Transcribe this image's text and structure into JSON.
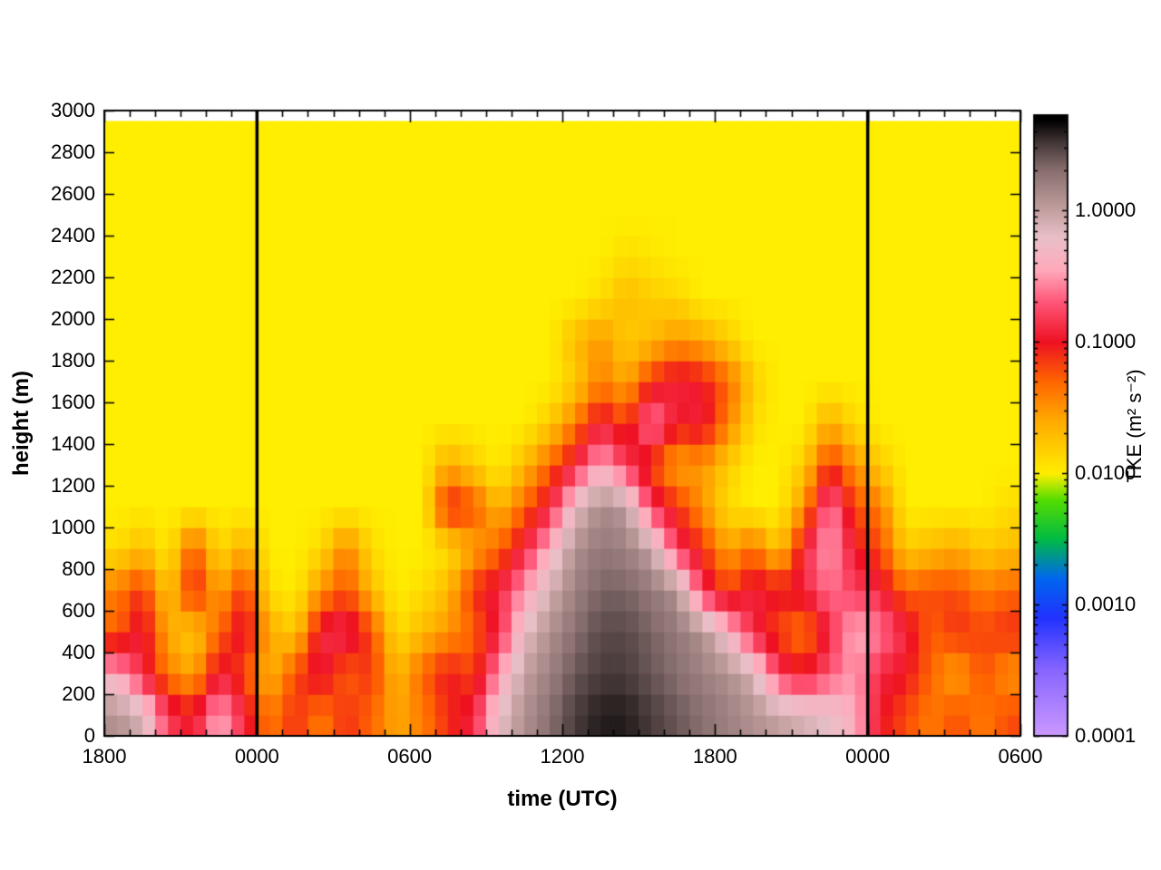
{
  "chart_data": {
    "type": "heatmap",
    "xlabel": "time (UTC)",
    "ylabel": "height (m)",
    "x_range_hours": [
      0,
      36
    ],
    "y_range_m": [
      0,
      3000
    ],
    "heatmap_top_m": 2950,
    "x_ticks": [
      {
        "hour": 0,
        "label": "1800"
      },
      {
        "hour": 6,
        "label": "0000"
      },
      {
        "hour": 12,
        "label": "0600"
      },
      {
        "hour": 18,
        "label": "1200"
      },
      {
        "hour": 24,
        "label": "1800"
      },
      {
        "hour": 30,
        "label": "0000"
      },
      {
        "hour": 36,
        "label": "0600"
      }
    ],
    "y_ticks": [
      {
        "m": 0,
        "label": "0"
      },
      {
        "m": 200,
        "label": "200"
      },
      {
        "m": 400,
        "label": "400"
      },
      {
        "m": 600,
        "label": "600"
      },
      {
        "m": 800,
        "label": "800"
      },
      {
        "m": 1000,
        "label": "1000"
      },
      {
        "m": 1200,
        "label": "1200"
      },
      {
        "m": 1400,
        "label": "1400"
      },
      {
        "m": 1600,
        "label": "1600"
      },
      {
        "m": 1800,
        "label": "1800"
      },
      {
        "m": 2000,
        "label": "2000"
      },
      {
        "m": 2200,
        "label": "2200"
      },
      {
        "m": 2400,
        "label": "2400"
      },
      {
        "m": 2600,
        "label": "2600"
      },
      {
        "m": 2800,
        "label": "2800"
      },
      {
        "m": 3000,
        "label": "3000"
      }
    ],
    "vertical_lines_hours": [
      6,
      30
    ],
    "vertical_line_color": "#000000",
    "colorbar": {
      "scale": "log",
      "label": "TKE (m² s⁻²)",
      "range_log10": [
        -4,
        0.725
      ],
      "ticks": [
        {
          "log10": -4,
          "label": "0.0001"
        },
        {
          "log10": -3,
          "label": "0.0010"
        },
        {
          "log10": -2,
          "label": "0.0100"
        },
        {
          "log10": -1,
          "label": "0.1000"
        },
        {
          "log10": 0,
          "label": "1.0000"
        }
      ]
    },
    "palette_log10_stops": [
      {
        "v": -4.0,
        "color": "#cc99ff"
      },
      {
        "v": -3.5,
        "color": "#8866ff"
      },
      {
        "v": -3.1,
        "color": "#2233ff"
      },
      {
        "v": -2.8,
        "color": "#0066ee"
      },
      {
        "v": -2.5,
        "color": "#00bb44"
      },
      {
        "v": -2.2,
        "color": "#55dd00"
      },
      {
        "v": -2.0,
        "color": "#ffee00"
      },
      {
        "v": -1.6,
        "color": "#ffaa00"
      },
      {
        "v": -1.3,
        "color": "#ff6600"
      },
      {
        "v": -1.0,
        "color": "#ee1122"
      },
      {
        "v": -0.7,
        "color": "#ff5577"
      },
      {
        "v": -0.45,
        "color": "#ffaabb"
      },
      {
        "v": -0.2,
        "color": "#e8c0c8"
      },
      {
        "v": 0.0,
        "color": "#c4a0a0"
      },
      {
        "v": 0.3,
        "color": "#8a7070"
      },
      {
        "v": 0.5,
        "color": "#4a3c3c"
      },
      {
        "v": 0.69,
        "color": "#000000"
      }
    ],
    "grid": {
      "time_step_hours": 1,
      "height_step_m": 200,
      "values_are": "log10 of TKE (m2 s-2), columns hourly from 1800 UTC, rows bottom to top",
      "rows_bottom_to_top": [
        [
          0.1,
          -0.1,
          -0.8,
          -1.0,
          -0.4,
          -0.9,
          -1.4,
          -1.1,
          -1.4,
          -1.1,
          -1.3,
          -1.6,
          -1.4,
          -1.1,
          -0.9,
          -0.2,
          0.1,
          0.3,
          0.5,
          0.6,
          0.6,
          0.5,
          0.4,
          0.3,
          0.2,
          0.1,
          0.0,
          -0.1,
          -0.2,
          -0.4,
          -1.0,
          -1.2,
          -1.4,
          -1.2,
          -1.4,
          -1.2
        ],
        [
          -0.4,
          -0.9,
          -1.4,
          -1.6,
          -0.9,
          -1.2,
          -1.7,
          -1.2,
          -0.9,
          -1.3,
          -1.1,
          -1.7,
          -1.3,
          -1.0,
          -1.2,
          -0.5,
          0.0,
          0.2,
          0.4,
          0.5,
          0.5,
          0.4,
          0.3,
          0.2,
          0.1,
          -0.1,
          -0.8,
          -1.0,
          -0.7,
          -0.5,
          -0.9,
          -1.0,
          -1.3,
          -1.6,
          -1.2,
          -1.5
        ],
        [
          -1.3,
          -0.9,
          -1.6,
          -1.8,
          -1.3,
          -0.9,
          -1.6,
          -1.8,
          -0.9,
          -0.8,
          -1.2,
          -1.9,
          -1.7,
          -1.5,
          -1.3,
          -0.9,
          -0.2,
          0.1,
          0.3,
          0.45,
          0.45,
          0.35,
          0.25,
          0.1,
          -0.3,
          -0.9,
          -1.2,
          -1.4,
          -0.9,
          -0.4,
          -0.6,
          -0.9,
          -1.3,
          -1.1,
          -1.2,
          -1.1
        ],
        [
          -1.4,
          -1.1,
          -1.8,
          -1.0,
          -1.6,
          -1.1,
          -1.9,
          -2.0,
          -1.5,
          -1.2,
          -1.7,
          -2.0,
          -1.9,
          -1.7,
          -1.1,
          -0.9,
          -0.5,
          -0.1,
          0.2,
          0.35,
          0.35,
          0.25,
          0.1,
          -0.8,
          -1.2,
          -0.9,
          -1.0,
          -0.9,
          -0.6,
          -0.8,
          -0.9,
          -1.3,
          -1.2,
          -1.2,
          -1.4,
          -1.3
        ],
        [
          -1.9,
          -1.7,
          -2.0,
          -1.2,
          -1.9,
          -1.6,
          -2.0,
          -2.0,
          -1.9,
          -1.4,
          -1.9,
          -2.0,
          -2.0,
          -1.9,
          -1.6,
          -1.3,
          -0.9,
          -0.4,
          0.1,
          0.25,
          0.2,
          0.0,
          -0.8,
          -1.1,
          -1.6,
          -1.3,
          -1.8,
          -0.9,
          -0.45,
          -1.0,
          -1.2,
          -1.8,
          -1.7,
          -1.6,
          -1.8,
          -1.7
        ],
        [
          -2.0,
          -2.0,
          -2.0,
          -2.0,
          -2.0,
          -2.0,
          -2.0,
          -2.0,
          -2.0,
          -2.0,
          -2.0,
          -2.0,
          -2.0,
          -1.0,
          -1.2,
          -1.7,
          -1.3,
          -0.9,
          -0.2,
          0.15,
          0.05,
          -0.8,
          -1.1,
          -1.5,
          -1.9,
          -2.0,
          -2.0,
          -1.5,
          -0.5,
          -1.2,
          -1.4,
          -2.0,
          -2.0,
          -2.0,
          -2.0,
          -1.9
        ],
        [
          -2.0,
          -2.0,
          -2.0,
          -2.0,
          -2.0,
          -2.0,
          -2.0,
          -2.0,
          -2.0,
          -2.0,
          -2.0,
          -2.0,
          -2.0,
          -1.6,
          -1.8,
          -2.0,
          -1.7,
          -1.3,
          -0.9,
          -0.4,
          -0.8,
          -1.2,
          -1.6,
          -1.5,
          -1.8,
          -2.0,
          -2.0,
          -1.8,
          -1.1,
          -1.5,
          -1.8,
          -2.0,
          -2.0,
          -2.0,
          -2.0,
          -2.0
        ],
        [
          -2.0,
          -2.0,
          -2.0,
          -2.0,
          -2.0,
          -2.0,
          -2.0,
          -2.0,
          -2.0,
          -2.0,
          -2.0,
          -2.0,
          -2.0,
          -2.0,
          -2.0,
          -2.0,
          -2.0,
          -1.8,
          -1.4,
          -0.9,
          -1.2,
          -0.5,
          -1.0,
          -0.9,
          -1.4,
          -1.9,
          -2.0,
          -2.0,
          -1.6,
          -1.9,
          -2.0,
          -2.0,
          -2.0,
          -2.0,
          -2.0,
          -2.0
        ],
        [
          -2.0,
          -2.0,
          -2.0,
          -2.0,
          -2.0,
          -2.0,
          -2.0,
          -2.0,
          -2.0,
          -2.0,
          -2.0,
          -2.0,
          -2.0,
          -2.0,
          -2.0,
          -2.0,
          -2.0,
          -2.0,
          -1.8,
          -1.4,
          -1.6,
          -1.1,
          -0.9,
          -1.0,
          -1.3,
          -1.8,
          -2.0,
          -2.0,
          -2.0,
          -2.0,
          -2.0,
          -2.0,
          -2.0,
          -2.0,
          -2.0,
          -2.0
        ],
        [
          -2.0,
          -2.0,
          -2.0,
          -2.0,
          -2.0,
          -2.0,
          -2.0,
          -2.0,
          -2.0,
          -2.0,
          -2.0,
          -2.0,
          -2.0,
          -2.0,
          -2.0,
          -2.0,
          -2.0,
          -2.0,
          -1.7,
          -1.5,
          -1.8,
          -1.7,
          -1.5,
          -1.6,
          -1.8,
          -2.0,
          -2.0,
          -2.0,
          -2.0,
          -2.0,
          -2.0,
          -2.0,
          -2.0,
          -2.0,
          -2.0,
          -2.0
        ],
        [
          -2.0,
          -2.0,
          -2.0,
          -2.0,
          -2.0,
          -2.0,
          -2.0,
          -2.0,
          -2.0,
          -2.0,
          -2.0,
          -2.0,
          -2.0,
          -2.0,
          -2.0,
          -2.0,
          -2.0,
          -2.0,
          -2.0,
          -1.9,
          -1.7,
          -1.8,
          -1.85,
          -2.0,
          -2.0,
          -2.0,
          -2.0,
          -2.0,
          -2.0,
          -2.0,
          -2.0,
          -2.0,
          -2.0,
          -2.0,
          -2.0,
          -2.0
        ],
        [
          -2.0,
          -2.0,
          -2.0,
          -2.0,
          -2.0,
          -2.0,
          -2.0,
          -2.0,
          -2.0,
          -2.0,
          -2.0,
          -2.0,
          -2.0,
          -2.0,
          -2.0,
          -2.0,
          -2.0,
          -2.0,
          -2.0,
          -2.0,
          -1.9,
          -1.95,
          -2.0,
          -2.0,
          -2.0,
          -2.0,
          -2.0,
          -2.0,
          -2.0,
          -2.0,
          -2.0,
          -2.0,
          -2.0,
          -2.0,
          -2.0,
          -2.0
        ],
        [
          -2.0,
          -2.0,
          -2.0,
          -2.0,
          -2.0,
          -2.0,
          -2.0,
          -2.0,
          -2.0,
          -2.0,
          -2.0,
          -2.0,
          -2.0,
          -2.0,
          -2.0,
          -2.0,
          -2.0,
          -2.0,
          -2.0,
          -2.0,
          -2.0,
          -2.0,
          -2.0,
          -2.0,
          -2.0,
          -2.0,
          -2.0,
          -2.0,
          -2.0,
          -2.0,
          -2.0,
          -2.0,
          -2.0,
          -2.0,
          -2.0,
          -2.0
        ],
        [
          -2.0,
          -2.0,
          -2.0,
          -2.0,
          -2.0,
          -2.0,
          -2.0,
          -2.0,
          -2.0,
          -2.0,
          -2.0,
          -2.0,
          -2.0,
          -2.0,
          -2.0,
          -2.0,
          -2.0,
          -2.0,
          -2.0,
          -2.0,
          -2.0,
          -2.0,
          -2.0,
          -2.0,
          -2.0,
          -2.0,
          -2.0,
          -2.0,
          -2.0,
          -2.0,
          -2.0,
          -2.0,
          -2.0,
          -2.0,
          -2.0,
          -2.0
        ],
        [
          -2.0,
          -2.0,
          -2.0,
          -2.0,
          -2.0,
          -2.0,
          -2.0,
          -2.0,
          -2.0,
          -2.0,
          -2.0,
          -2.0,
          -2.0,
          -2.0,
          -2.0,
          -2.0,
          -2.0,
          -2.0,
          -2.0,
          -2.0,
          -2.0,
          -2.0,
          -2.0,
          -2.0,
          -2.0,
          -2.0,
          -2.0,
          -2.0,
          -2.0,
          -2.0,
          -2.0,
          -2.0,
          -2.0,
          -2.0,
          -2.0,
          -2.0
        ]
      ]
    }
  }
}
